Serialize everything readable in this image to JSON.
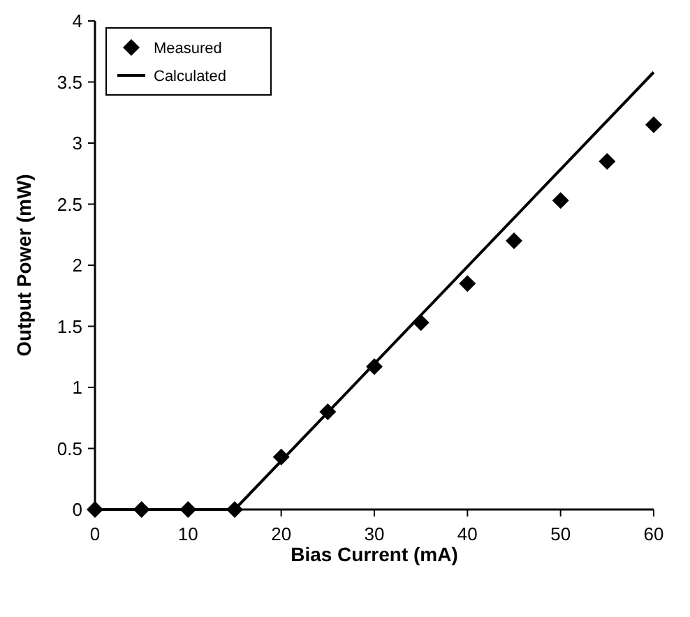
{
  "chart_data": {
    "type": "line",
    "xlabel": "Bias Current (mA)",
    "ylabel": "Output Power (mW)",
    "xlim": [
      0,
      60
    ],
    "xticks": [
      0,
      10,
      20,
      30,
      40,
      50,
      60
    ],
    "ylim": [
      0,
      4
    ],
    "yticks": [
      0,
      0.5,
      1,
      1.5,
      2,
      2.5,
      3,
      3.5,
      4
    ],
    "grid": false,
    "legend": "top left",
    "series": [
      {
        "name": "Measured",
        "type": "scatter",
        "marker": "diamond",
        "color": "#000000",
        "x": [
          0,
          5,
          10,
          15,
          20,
          25,
          30,
          35,
          40,
          45,
          50,
          55,
          60
        ],
        "values": [
          0,
          0,
          0,
          0,
          0.43,
          0.8,
          1.17,
          1.53,
          1.85,
          2.2,
          2.53,
          2.85,
          3.15
        ]
      },
      {
        "name": "Calculated",
        "marker": "none",
        "line_style": "solid",
        "color": "#000000",
        "x": [
          0,
          15,
          60
        ],
        "values": [
          0,
          0,
          3.58
        ]
      }
    ]
  }
}
